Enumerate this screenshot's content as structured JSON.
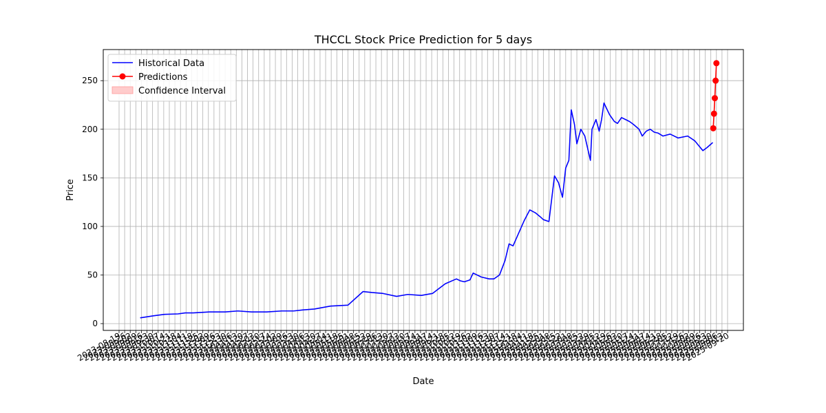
{
  "chart_data": {
    "type": "line",
    "title": "THCCL Stock Price Prediction for 5 days",
    "xlabel": "Date",
    "ylabel": "Price",
    "ylim": [
      -7,
      282
    ],
    "yticks": [
      0,
      50,
      100,
      150,
      200,
      250
    ],
    "grid": true,
    "legend": {
      "placement": "top-left",
      "entries": [
        "Historical Data",
        "Predictions",
        "Confidence Interval"
      ]
    },
    "xtick_labels": [
      "2023-08-19",
      "2023-08-26",
      "2023-09-02",
      "2023-09-09",
      "2023-09-16",
      "2023-09-23",
      "2023-09-30",
      "2023-10-07",
      "2023-10-14",
      "2023-10-21",
      "2023-10-28",
      "2023-11-04",
      "2023-11-11",
      "2023-11-18",
      "2023-11-25",
      "2023-12-02",
      "2023-12-09",
      "2023-12-16",
      "2023-12-23",
      "2023-12-30",
      "2024-01-06",
      "2024-01-13",
      "2024-01-20",
      "2024-01-27",
      "2024-02-03",
      "2024-02-10",
      "2024-02-17",
      "2024-02-24",
      "2024-03-02",
      "2024-03-09",
      "2024-03-16",
      "2024-03-23",
      "2024-03-30",
      "2024-04-06",
      "2024-04-13",
      "2024-04-20",
      "2024-04-27",
      "2024-05-04",
      "2024-05-11",
      "2024-05-18",
      "2024-05-25",
      "2024-06-01",
      "2024-06-08",
      "2024-06-15",
      "2024-06-22",
      "2024-06-29",
      "2024-07-06",
      "2024-07-13",
      "2024-07-20",
      "2024-07-27",
      "2024-08-03",
      "2024-08-10",
      "2024-08-17",
      "2024-08-24",
      "2024-08-31",
      "2024-09-07",
      "2024-09-14",
      "2024-09-21",
      "2024-09-28",
      "2024-10-05",
      "2024-10-12",
      "2024-10-19",
      "2024-10-26",
      "2024-11-02",
      "2024-11-09",
      "2024-11-16",
      "2024-11-23",
      "2024-11-30",
      "2024-12-07",
      "2024-12-14",
      "2024-12-21",
      "2024-12-28",
      "2025-01-04",
      "2025-01-11",
      "2025-01-18",
      "2025-01-25",
      "2025-02-01",
      "2025-02-08",
      "2025-02-15",
      "2025-02-22",
      "2025-03-01",
      "2025-03-08",
      "2025-03-15",
      "2025-03-22",
      "2025-03-29",
      "2025-04-05",
      "2025-04-12",
      "2025-04-19",
      "2025-04-26",
      "2025-05-03",
      "2025-05-10",
      "2025-05-17",
      "2025-05-24",
      "2025-05-31",
      "2025-06-07",
      "2025-06-14",
      "2025-06-21",
      "2025-06-28",
      "2025-07-05",
      "2025-07-12",
      "2025-07-19",
      "2025-07-26",
      "2025-08-02",
      "2025-08-09",
      "2025-08-16",
      "2025-08-23",
      "2025-08-30",
      "2025-09-06",
      "2025-09-13",
      "2025-09-20"
    ],
    "series": [
      {
        "name": "Historical Data",
        "color": "#0000ff",
        "x": [
          "2023-09-15",
          "2023-10-01",
          "2023-10-15",
          "2023-11-01",
          "2023-11-10",
          "2023-11-20",
          "2023-12-10",
          "2023-12-20",
          "2023-12-30",
          "2024-01-15",
          "2024-02-01",
          "2024-02-20",
          "2024-03-10",
          "2024-03-25",
          "2024-04-05",
          "2024-04-20",
          "2024-05-10",
          "2024-06-01",
          "2024-06-20",
          "2024-07-01",
          "2024-07-15",
          "2024-08-01",
          "2024-08-15",
          "2024-09-01",
          "2024-09-15",
          "2024-10-01",
          "2024-10-15",
          "2024-10-20",
          "2024-10-25",
          "2024-11-01",
          "2024-11-05",
          "2024-11-15",
          "2024-11-25",
          "2024-12-01",
          "2024-12-08",
          "2024-12-15",
          "2024-12-20",
          "2024-12-25",
          "2025-01-01",
          "2025-01-08",
          "2025-01-15",
          "2025-01-22",
          "2025-01-28",
          "2025-02-01",
          "2025-02-08",
          "2025-02-15",
          "2025-02-20",
          "2025-02-25",
          "2025-03-01",
          "2025-03-05",
          "2025-03-08",
          "2025-03-12",
          "2025-03-15",
          "2025-03-20",
          "2025-03-25",
          "2025-04-01",
          "2025-04-03",
          "2025-04-08",
          "2025-04-12",
          "2025-04-15",
          "2025-04-18",
          "2025-04-25",
          "2025-05-01",
          "2025-05-05",
          "2025-05-10",
          "2025-05-15",
          "2025-05-20",
          "2025-05-25",
          "2025-06-01",
          "2025-06-05",
          "2025-06-10",
          "2025-06-15",
          "2025-06-20",
          "2025-06-25",
          "2025-07-01",
          "2025-07-10",
          "2025-07-20",
          "2025-08-01",
          "2025-08-10",
          "2025-08-20",
          "2025-08-25",
          "2025-09-01"
        ],
        "values": [
          6,
          8,
          9.5,
          10,
          11,
          11,
          12,
          12,
          12,
          13,
          12,
          12,
          13,
          13,
          14,
          15,
          18,
          19,
          33,
          32,
          31,
          28,
          30,
          29,
          31,
          41,
          46,
          44,
          43,
          45,
          52,
          48,
          46,
          46,
          50,
          65,
          82,
          80,
          93,
          106,
          117,
          114,
          110,
          107,
          105,
          152,
          145,
          130,
          160,
          168,
          220,
          205,
          185,
          200,
          193,
          168,
          200,
          210,
          198,
          210,
          227,
          215,
          208,
          206,
          212,
          210,
          208,
          205,
          200,
          193,
          198,
          200,
          197,
          196,
          193,
          195,
          191,
          193,
          188,
          178,
          181,
          186
        ]
      },
      {
        "name": "Predictions",
        "color": "#ff0000",
        "x": [
          "2025-09-02",
          "2025-09-03",
          "2025-09-04",
          "2025-09-05",
          "2025-09-06"
        ],
        "values": [
          201,
          216,
          232,
          250,
          268
        ]
      }
    ]
  }
}
